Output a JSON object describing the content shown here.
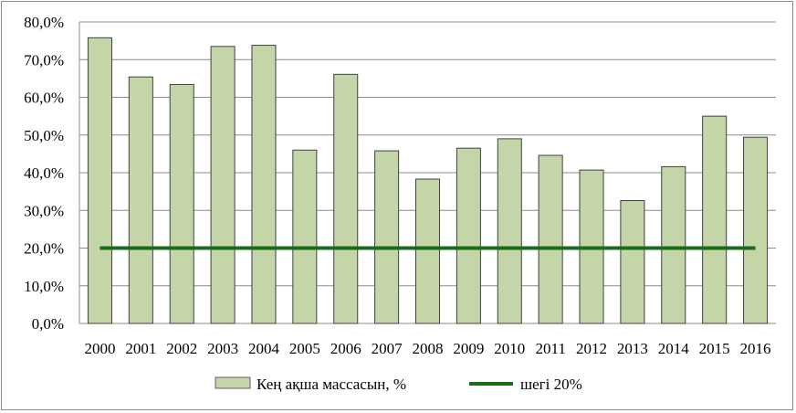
{
  "chart_data": {
    "type": "bar",
    "categories": [
      "2000",
      "2001",
      "2002",
      "2003",
      "2004",
      "2005",
      "2006",
      "2007",
      "2008",
      "2009",
      "2010",
      "2011",
      "2012",
      "2013",
      "2014",
      "2015",
      "2016"
    ],
    "series": [
      {
        "name": "Кең ақша массасын, %",
        "type": "bar",
        "color": "#c4d6a8",
        "values": [
          75.8,
          65.4,
          63.4,
          73.5,
          73.8,
          46.0,
          66.1,
          45.8,
          38.3,
          46.5,
          49.0,
          44.6,
          40.7,
          32.6,
          41.6,
          55.0,
          49.4
        ]
      },
      {
        "name": "шегі 20%",
        "type": "line",
        "color": "#1a6b1a",
        "values": [
          20.0,
          20.0,
          20.0,
          20.0,
          20.0,
          20.0,
          20.0,
          20.0,
          20.0,
          20.0,
          20.0,
          20.0,
          20.0,
          20.0,
          20.0,
          20.0,
          20.0
        ]
      }
    ],
    "yticks": [
      "0,0%",
      "10,0%",
      "20,0%",
      "30,0%",
      "40,0%",
      "50,0%",
      "60,0%",
      "70,0%",
      "80,0%"
    ],
    "ylim": [
      0,
      80
    ],
    "grid": true,
    "legend_position": "bottom",
    "title": "",
    "xlabel": "",
    "ylabel": ""
  }
}
